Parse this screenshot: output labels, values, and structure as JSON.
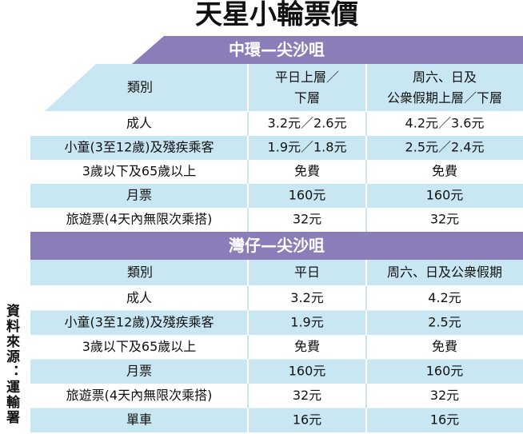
{
  "title": "天星小輪票價",
  "source": "資料來源：運輸署",
  "sections": [
    {
      "route": "中環—尖沙咀",
      "headers": [
        "類別",
        "平日上層／\n下層",
        "周六、日及\n公衆假期上層／下層"
      ],
      "rows": [
        [
          "成人",
          "3.2元／2.6元",
          "4.2元／3.6元"
        ],
        [
          "小童(3至12歲)及殘疾乘客",
          "1.9元／1.8元",
          "2.5元／2.4元"
        ],
        [
          "3歲以下及65歲以上",
          "免費",
          "免費"
        ],
        [
          "月票",
          "160元",
          "160元"
        ],
        [
          "旅遊票(4天內無限次乘搭)",
          "32元",
          "32元"
        ]
      ]
    },
    {
      "route": "灣仔—尖沙咀",
      "headers": [
        "類別",
        "平日",
        "周六、日及公衆假期"
      ],
      "rows": [
        [
          "成人",
          "3.2元",
          "4.2元"
        ],
        [
          "小童(3至12歲)及殘疾乘客",
          "1.9元",
          "2.5元"
        ],
        [
          "3歲以下及65歲以上",
          "免費",
          "免費"
        ],
        [
          "月票",
          "160元",
          "160元"
        ],
        [
          "旅遊票(4天內無限次乘搭)",
          "32元",
          "32元"
        ],
        [
          "單車",
          "16元",
          "16元"
        ]
      ]
    }
  ]
}
